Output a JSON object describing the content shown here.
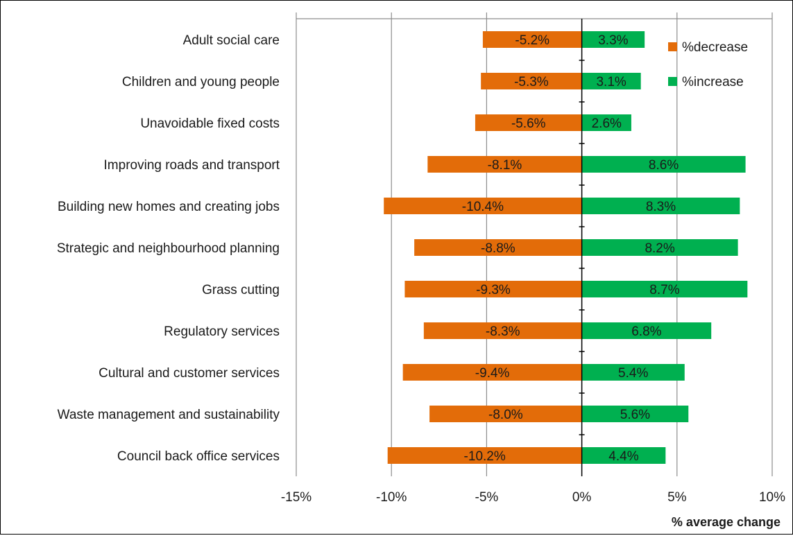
{
  "chart_data": {
    "type": "bar",
    "orientation": "horizontal",
    "categories": [
      "Adult social care",
      "Children and young people",
      "Unavoidable fixed costs",
      "Improving roads and transport",
      "Building new homes and creating jobs",
      "Strategic and neighbourhood planning",
      "Grass cutting",
      "Regulatory services",
      "Cultural and customer services",
      "Waste management and sustainability",
      "Council back office services"
    ],
    "series": [
      {
        "name": "%decrease",
        "color": "#E36C09",
        "values": [
          -5.2,
          -5.3,
          -5.6,
          -8.1,
          -10.4,
          -8.8,
          -9.3,
          -8.3,
          -9.4,
          -8.0,
          -10.2
        ],
        "labels": [
          "-5.2%",
          "-5.3%",
          "-5.6%",
          "-8.1%",
          "-10.4%",
          "-8.8%",
          "-9.3%",
          "-8.3%",
          "-9.4%",
          "-8.0%",
          "-10.2%"
        ]
      },
      {
        "name": "%increase",
        "color": "#00B050",
        "values": [
          3.3,
          3.1,
          2.6,
          8.6,
          8.3,
          8.2,
          8.7,
          6.8,
          5.4,
          5.6,
          4.4
        ],
        "labels": [
          "3.3%",
          "3.1%",
          "2.6%",
          "8.6%",
          "8.3%",
          "8.2%",
          "8.7%",
          "6.8%",
          "5.4%",
          "5.6%",
          "4.4%"
        ]
      }
    ],
    "xlim": [
      -15,
      10
    ],
    "xticks": [
      -15,
      -10,
      -5,
      0,
      5,
      10
    ],
    "xtick_labels": [
      "-15%",
      "-10%",
      "-5%",
      "0%",
      "5%",
      "10%"
    ],
    "xlabel": "% average change",
    "ylabel": "",
    "title": "",
    "grid": "vertical",
    "legend_position": "top-right"
  }
}
